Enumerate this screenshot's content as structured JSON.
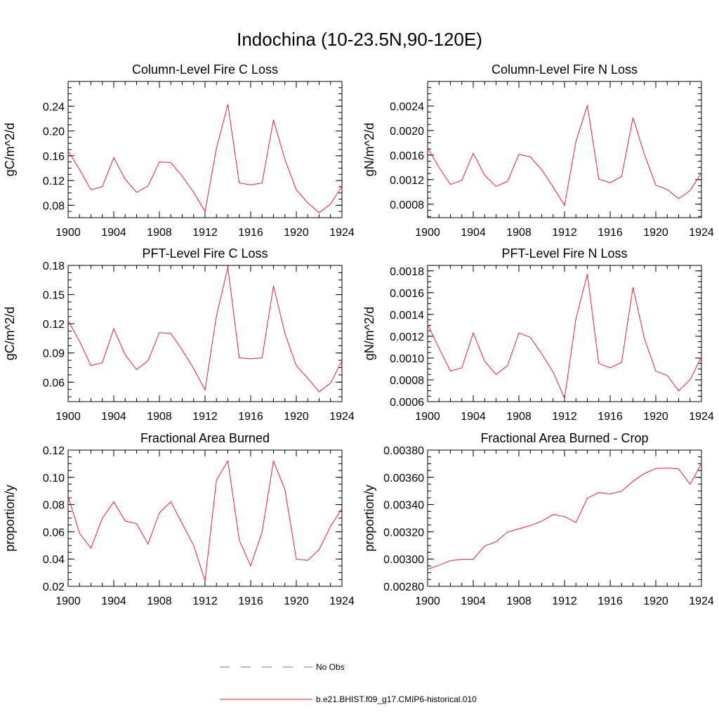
{
  "figure": {
    "title": "Indochina (10-23.5N,90-120E)"
  },
  "legend": {
    "entries": [
      {
        "label": "No Obs",
        "color": "#7070a0",
        "style": "dashed"
      },
      {
        "label": "b.e21.BHIST.f09_g17.CMIP6-historical.010",
        "color": "#e8202a",
        "style": "solid"
      }
    ]
  },
  "series_color": "#e8202a",
  "chart_data": [
    {
      "type": "line",
      "title": "Column-Level Fire C Loss",
      "ylabel": "gC/m^2/d",
      "xlim": [
        1900,
        1924
      ],
      "ylim": [
        0.06,
        0.28
      ],
      "xticks": [
        "1900",
        "1904",
        "1908",
        "1912",
        "1916",
        "1920",
        "1924"
      ],
      "yticks": [
        "0.08",
        "0.12",
        "0.16",
        "0.20",
        "0.24"
      ],
      "x": [
        1900,
        1901,
        1902,
        1903,
        1904,
        1905,
        1906,
        1907,
        1908,
        1909,
        1910,
        1911,
        1912,
        1913,
        1914,
        1915,
        1916,
        1917,
        1918,
        1919,
        1920,
        1921,
        1922,
        1923,
        1924
      ],
      "values": [
        0.168,
        0.138,
        0.105,
        0.11,
        0.157,
        0.122,
        0.101,
        0.111,
        0.15,
        0.149,
        0.127,
        0.101,
        0.07,
        0.172,
        0.243,
        0.116,
        0.113,
        0.116,
        0.218,
        0.154,
        0.105,
        0.084,
        0.068,
        0.082,
        0.111
      ]
    },
    {
      "type": "line",
      "title": "Column-Level Fire N Loss",
      "ylabel": "gN/m^2/d",
      "xlim": [
        1900,
        1924
      ],
      "ylim": [
        0.00058,
        0.0028
      ],
      "xticks": [
        "1900",
        "1904",
        "1908",
        "1912",
        "1916",
        "1920",
        "1924"
      ],
      "yticks": [
        "0.0008",
        "0.0012",
        "0.0016",
        "0.0020",
        "0.0024"
      ],
      "x": [
        1900,
        1901,
        1902,
        1903,
        1904,
        1905,
        1906,
        1907,
        1908,
        1909,
        1910,
        1911,
        1912,
        1913,
        1914,
        1915,
        1916,
        1917,
        1918,
        1919,
        1920,
        1921,
        1922,
        1923,
        1924
      ],
      "values": [
        0.00172,
        0.0014,
        0.00112,
        0.00119,
        0.00163,
        0.00127,
        0.00109,
        0.00117,
        0.00161,
        0.00157,
        0.00136,
        0.00108,
        0.00078,
        0.00182,
        0.00241,
        0.00121,
        0.00115,
        0.00125,
        0.00221,
        0.00161,
        0.00111,
        0.00104,
        0.00089,
        0.00102,
        0.00131
      ]
    },
    {
      "type": "line",
      "title": "PFT-Level Fire C Loss",
      "ylabel": "gC/m^2/d",
      "xlim": [
        1900,
        1924
      ],
      "ylim": [
        0.04,
        0.18
      ],
      "xticks": [
        "1900",
        "1904",
        "1908",
        "1912",
        "1916",
        "1920",
        "1924"
      ],
      "yticks": [
        "0.06",
        "0.09",
        "0.12",
        "0.15",
        "0.18"
      ],
      "x": [
        1900,
        1901,
        1902,
        1903,
        1904,
        1905,
        1906,
        1907,
        1908,
        1909,
        1910,
        1911,
        1912,
        1913,
        1914,
        1915,
        1916,
        1917,
        1918,
        1919,
        1920,
        1921,
        1922,
        1923,
        1924
      ],
      "values": [
        0.123,
        0.102,
        0.077,
        0.08,
        0.115,
        0.088,
        0.073,
        0.082,
        0.111,
        0.11,
        0.093,
        0.074,
        0.052,
        0.128,
        0.178,
        0.085,
        0.084,
        0.085,
        0.159,
        0.11,
        0.077,
        0.064,
        0.05,
        0.059,
        0.082
      ]
    },
    {
      "type": "line",
      "title": "PFT-Level Fire N Loss",
      "ylabel": "gN/m^2/d",
      "xlim": [
        1900,
        1924
      ],
      "ylim": [
        0.0006,
        0.00185
      ],
      "xticks": [
        "1900",
        "1904",
        "1908",
        "1912",
        "1916",
        "1920",
        "1924"
      ],
      "yticks": [
        "0.0006",
        "0.0008",
        "0.0010",
        "0.0012",
        "0.0014",
        "0.0016",
        "0.0018"
      ],
      "x": [
        1900,
        1901,
        1902,
        1903,
        1904,
        1905,
        1906,
        1907,
        1908,
        1909,
        1910,
        1911,
        1912,
        1913,
        1914,
        1915,
        1916,
        1917,
        1918,
        1919,
        1920,
        1921,
        1922,
        1923,
        1924
      ],
      "values": [
        0.00131,
        0.00109,
        0.00088,
        0.00091,
        0.00123,
        0.00097,
        0.00085,
        0.00093,
        0.00123,
        0.00119,
        0.00104,
        0.00087,
        0.00063,
        0.00136,
        0.00177,
        0.00095,
        0.00091,
        0.00096,
        0.00165,
        0.00118,
        0.00088,
        0.00084,
        0.0007,
        0.0008,
        0.00101
      ]
    },
    {
      "type": "line",
      "title": "Fractional Area Burned",
      "ylabel": "proportion/y",
      "xlim": [
        1900,
        1924
      ],
      "ylim": [
        0.02,
        0.12
      ],
      "xticks": [
        "1900",
        "1904",
        "1908",
        "1912",
        "1916",
        "1920",
        "1924"
      ],
      "yticks": [
        "0.02",
        "0.04",
        "0.06",
        "0.08",
        "0.10",
        "0.12"
      ],
      "x": [
        1900,
        1901,
        1902,
        1903,
        1904,
        1905,
        1906,
        1907,
        1908,
        1909,
        1910,
        1911,
        1912,
        1913,
        1914,
        1915,
        1916,
        1917,
        1918,
        1919,
        1920,
        1921,
        1922,
        1923,
        1924
      ],
      "values": [
        0.086,
        0.059,
        0.048,
        0.07,
        0.082,
        0.068,
        0.066,
        0.051,
        0.074,
        0.082,
        0.066,
        0.05,
        0.024,
        0.098,
        0.112,
        0.054,
        0.035,
        0.06,
        0.112,
        0.091,
        0.04,
        0.039,
        0.047,
        0.064,
        0.077
      ]
    },
    {
      "type": "line",
      "title": "Fractional Area Burned - Crop",
      "ylabel": "proportion/y",
      "xlim": [
        1900,
        1924
      ],
      "ylim": [
        0.0028,
        0.0038
      ],
      "xticks": [
        "1900",
        "1904",
        "1908",
        "1912",
        "1916",
        "1920",
        "1924"
      ],
      "yticks": [
        "0.00280",
        "0.00300",
        "0.00320",
        "0.00340",
        "0.00360",
        "0.00380"
      ],
      "x": [
        1900,
        1901,
        1902,
        1903,
        1904,
        1905,
        1906,
        1907,
        1908,
        1909,
        1910,
        1911,
        1912,
        1913,
        1914,
        1915,
        1916,
        1917,
        1918,
        1919,
        1920,
        1921,
        1922,
        1923,
        1924
      ],
      "values": [
        0.002925,
        0.002955,
        0.002988,
        0.002998,
        0.002998,
        0.003096,
        0.003127,
        0.003198,
        0.003222,
        0.003246,
        0.003278,
        0.003327,
        0.003312,
        0.003268,
        0.003447,
        0.003488,
        0.003478,
        0.003498,
        0.003571,
        0.003628,
        0.003665,
        0.003668,
        0.003662,
        0.003549,
        0.003702
      ]
    }
  ]
}
